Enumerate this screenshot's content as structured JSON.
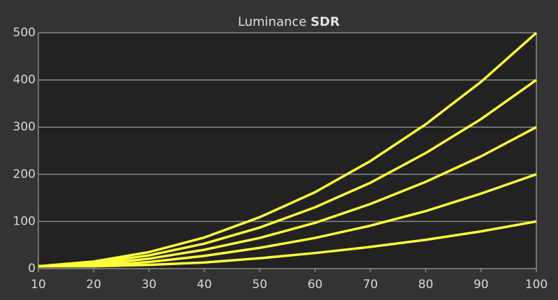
{
  "chart_data": {
    "type": "line",
    "title": "Luminance",
    "title_bold": "SDR",
    "x": [
      10,
      20,
      30,
      40,
      50,
      60,
      70,
      80,
      90,
      100
    ],
    "series": [
      {
        "color": "#ffff3a",
        "values": [
          5,
          15,
          35,
          66,
          109,
          162,
          228,
          306,
          396,
          500
        ]
      },
      {
        "color": "#ffff3a",
        "values": [
          5,
          12,
          28,
          53,
          87,
          130,
          182,
          245,
          317,
          400
        ]
      },
      {
        "color": "#ffff3a",
        "values": [
          5,
          9,
          21,
          40,
          65,
          97,
          137,
          184,
          238,
          300
        ]
      },
      {
        "color": "#ffff3a",
        "values": [
          5,
          6,
          14,
          27,
          44,
          65,
          91,
          122,
          159,
          200
        ]
      },
      {
        "color": "#ffff3a",
        "values": [
          5,
          5,
          8,
          13,
          22,
          33,
          46,
          61,
          79,
          100
        ]
      }
    ],
    "xlim": [
      10,
      100
    ],
    "xticks": [
      10,
      20,
      30,
      40,
      50,
      60,
      70,
      80,
      90,
      100
    ],
    "ylim": [
      0,
      500
    ],
    "yticks": [
      0,
      100,
      200,
      300,
      400,
      500
    ],
    "grid": true
  }
}
